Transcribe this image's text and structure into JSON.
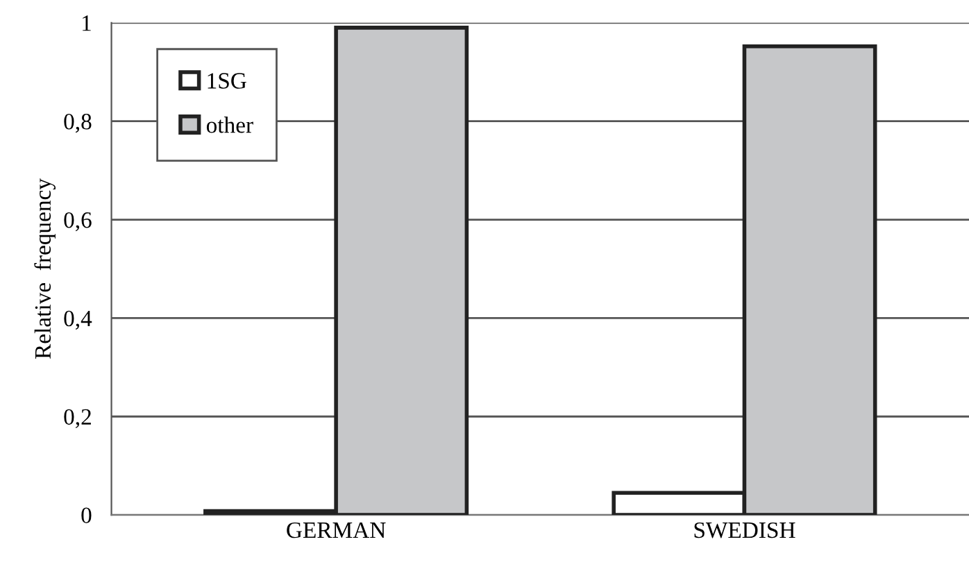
{
  "chart_data": {
    "type": "bar",
    "ylabel": "Relative  frequency",
    "categories": [
      "GERMAN",
      "SWEDISH"
    ],
    "series": [
      {
        "name": "1SG",
        "color": "#ffffff",
        "values": [
          0.008,
          0.045
        ]
      },
      {
        "name": "other",
        "color": "#c6c7c9",
        "values": [
          0.99,
          0.952
        ]
      }
    ],
    "ylim": [
      0,
      1
    ],
    "yticks": [
      0,
      {
        "value": 0.2,
        "label": "0,2"
      },
      {
        "value": 0.4,
        "label": "0,4"
      },
      {
        "value": 0.6,
        "label": "0,6"
      },
      {
        "value": 0.8,
        "label": "0,8"
      },
      1
    ],
    "grid": "y",
    "legend": "top left"
  }
}
